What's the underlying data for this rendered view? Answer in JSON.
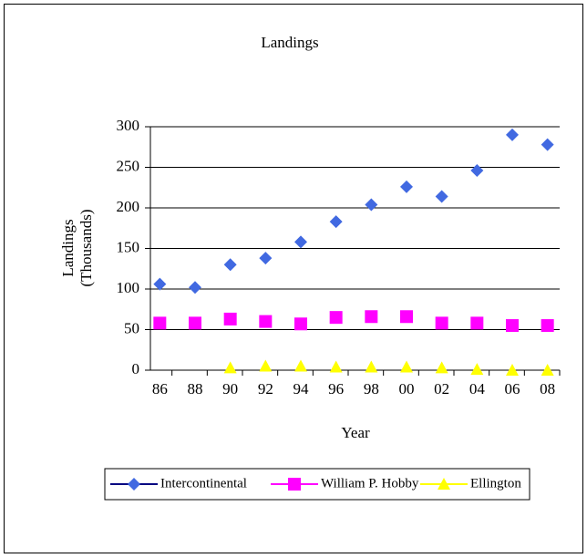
{
  "chart_data": {
    "type": "line",
    "title": "Landings",
    "x_label": "Year",
    "y_label": [
      "Landings",
      "(Thousands)"
    ],
    "categories": [
      "86",
      "88",
      "90",
      "92",
      "94",
      "96",
      "98",
      "00",
      "02",
      "04",
      "06",
      "08"
    ],
    "series": [
      {
        "name": "Intercontinental",
        "color": "#4169e1",
        "line_color": "#000080",
        "marker": "diamond",
        "values": [
          106,
          102,
          130,
          138,
          158,
          183,
          204,
          226,
          214,
          246,
          290,
          278
        ]
      },
      {
        "name": "William P. Hobby",
        "color": "#ff00ff",
        "line_color": "#ff00ff",
        "marker": "square",
        "values": [
          58,
          58,
          63,
          60,
          57,
          65,
          66,
          66,
          58,
          58,
          55,
          55
        ]
      },
      {
        "name": "Ellington",
        "color": "#ffff00",
        "line_color": "#ffff00",
        "marker": "triangle",
        "values": [
          null,
          null,
          3,
          5,
          5,
          4,
          4,
          4,
          3,
          1,
          0,
          0
        ]
      }
    ],
    "show_lines": false,
    "ylim": [
      0,
      300
    ],
    "yticks": [
      0,
      50,
      100,
      150,
      200,
      250,
      300
    ],
    "grid": true,
    "legend": "bottom"
  }
}
